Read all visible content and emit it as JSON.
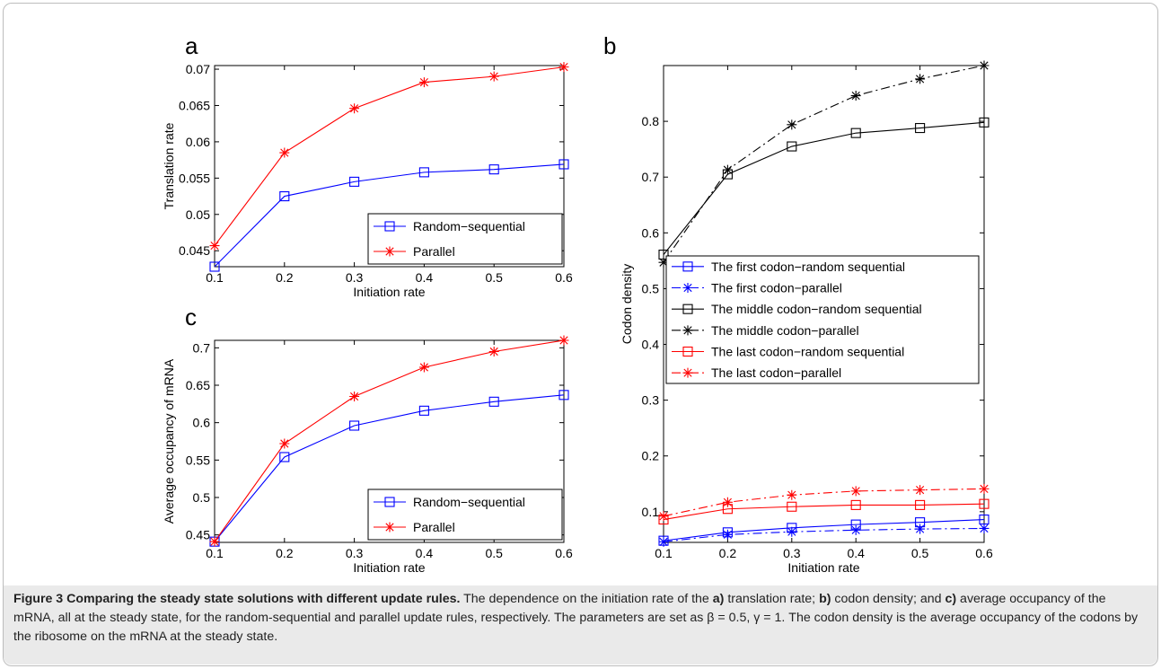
{
  "panels": {
    "a": "a",
    "b": "b",
    "c": "c"
  },
  "caption": {
    "title": "Figure 3  Comparing the steady state solutions with different update rules.",
    "p1": " The dependence on the initiation rate of the ",
    "a_label": "a)",
    "p2": " translation rate; ",
    "b_label": "b)",
    "p3": " codon density; and ",
    "c_label": "c)",
    "p4": " average occupancy of the mRNA, all at the steady state, for the random-sequential and parallel update rules, respectively. The parameters are set as β = 0.5, γ = 1. The codon density is the average occupancy of the codons by the ribosome on the mRNA at the steady state."
  },
  "chart_data": [
    {
      "panel": "a",
      "type": "line",
      "xlabel": "Initiation rate",
      "ylabel": "Translation rate",
      "xlim": [
        0.1,
        0.6
      ],
      "ylim": [
        0.0428,
        0.0705
      ],
      "xticks": [
        "0.1",
        "0.2",
        "0.3",
        "0.4",
        "0.5",
        "0.6"
      ],
      "yticks": [
        "0.045",
        "0.05",
        "0.055",
        "0.06",
        "0.065",
        "0.07"
      ],
      "grid": false,
      "legend_position": "bottom-right",
      "x": [
        0.1,
        0.2,
        0.3,
        0.4,
        0.5,
        0.6
      ],
      "series": [
        {
          "name": "Random−sequential",
          "color": "#0000ff",
          "marker": "square",
          "dash": "solid",
          "values": [
            0.0428,
            0.0525,
            0.0545,
            0.0558,
            0.0562,
            0.0569
          ]
        },
        {
          "name": "Parallel",
          "color": "#ff0000",
          "marker": "star",
          "dash": "solid",
          "values": [
            0.0457,
            0.0585,
            0.0646,
            0.0682,
            0.069,
            0.0703
          ]
        }
      ]
    },
    {
      "panel": "c",
      "type": "line",
      "xlabel": "Initiation rate",
      "ylabel": "Average occupancy of mRNA",
      "xlim": [
        0.1,
        0.6
      ],
      "ylim": [
        0.44,
        0.71
      ],
      "xticks": [
        "0.1",
        "0.2",
        "0.3",
        "0.4",
        "0.5",
        "0.6"
      ],
      "yticks": [
        "0.45",
        "0.5",
        "0.55",
        "0.6",
        "0.65",
        "0.7"
      ],
      "grid": false,
      "legend_position": "bottom-right",
      "x": [
        0.1,
        0.2,
        0.3,
        0.4,
        0.5,
        0.6
      ],
      "series": [
        {
          "name": "Random−sequential",
          "color": "#0000ff",
          "marker": "square",
          "dash": "solid",
          "values": [
            0.441,
            0.554,
            0.596,
            0.616,
            0.628,
            0.637
          ]
        },
        {
          "name": "Parallel",
          "color": "#ff0000",
          "marker": "star",
          "dash": "solid",
          "values": [
            0.441,
            0.572,
            0.635,
            0.674,
            0.695,
            0.71
          ]
        }
      ]
    },
    {
      "panel": "b",
      "type": "line",
      "xlabel": "Initiation rate",
      "ylabel": "Codon density",
      "xlim": [
        0.1,
        0.6
      ],
      "ylim": [
        0.045,
        0.9
      ],
      "xticks": [
        "0.1",
        "0.2",
        "0.3",
        "0.4",
        "0.5",
        "0.6"
      ],
      "yticks": [
        "0.1",
        "0.2",
        "0.3",
        "0.4",
        "0.5",
        "0.6",
        "0.7",
        "0.8"
      ],
      "grid": false,
      "legend_position": "middle-left",
      "x": [
        0.1,
        0.2,
        0.3,
        0.4,
        0.5,
        0.6
      ],
      "series": [
        {
          "name": "The first codon−random sequential",
          "color": "#0000ff",
          "marker": "square",
          "dash": "solid",
          "values": [
            0.048,
            0.063,
            0.071,
            0.077,
            0.081,
            0.086
          ]
        },
        {
          "name": "The first codon−parallel",
          "color": "#0000ff",
          "marker": "star",
          "dash": "dashdot",
          "values": [
            0.046,
            0.059,
            0.064,
            0.067,
            0.069,
            0.07
          ]
        },
        {
          "name": "The middle codon−random sequential",
          "color": "#000000",
          "marker": "square",
          "dash": "solid",
          "values": [
            0.561,
            0.705,
            0.755,
            0.779,
            0.788,
            0.798
          ]
        },
        {
          "name": "The middle codon−parallel",
          "color": "#000000",
          "marker": "star",
          "dash": "dashdot",
          "values": [
            0.547,
            0.713,
            0.794,
            0.846,
            0.876,
            0.9
          ]
        },
        {
          "name": "The last codon−random sequential",
          "color": "#ff0000",
          "marker": "square",
          "dash": "solid",
          "values": [
            0.086,
            0.105,
            0.109,
            0.112,
            0.112,
            0.114
          ]
        },
        {
          "name": "The last codon−parallel",
          "color": "#ff0000",
          "marker": "star",
          "dash": "dashdot",
          "values": [
            0.092,
            0.117,
            0.13,
            0.137,
            0.139,
            0.141
          ]
        }
      ]
    }
  ]
}
